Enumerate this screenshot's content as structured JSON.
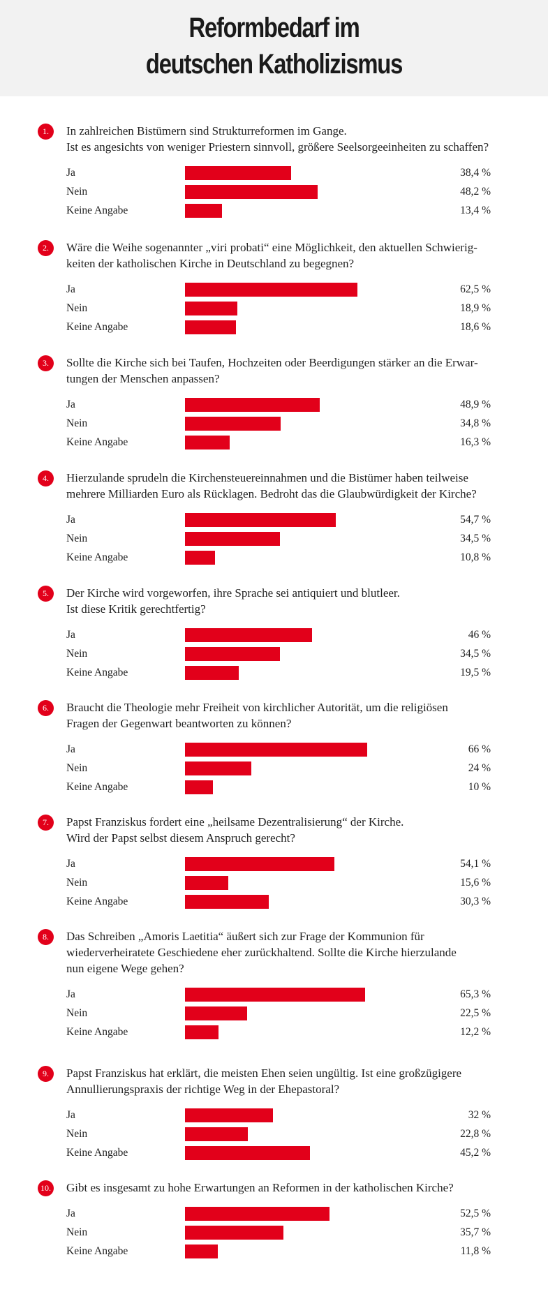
{
  "title_line1": "Reformbedarf im",
  "title_line2": "deutschen Katholizismus",
  "colors": {
    "bar": "#e2001a",
    "header_bg": "#f2f2f2"
  },
  "chart_data": {
    "type": "bar",
    "orientation": "horizontal",
    "unit": "%",
    "xlim": [
      0,
      100
    ],
    "categories": [
      "Ja",
      "Nein",
      "Keine Angabe"
    ],
    "questions": [
      {
        "number": "1.",
        "lines": [
          "In zahlreichen Bistümern sind Strukturreformen im Gange.",
          "Ist es angesichts von weniger Priestern sinnvoll, größere Seelsorgeeinheiten zu schaffen?"
        ],
        "values": [
          38.4,
          48.2,
          13.4
        ],
        "labels": [
          "38,4 %",
          "48,2 %",
          "13,4 %"
        ]
      },
      {
        "number": "2.",
        "lines": [
          "Wäre die Weihe sogenannter „viri probati“ eine Möglichkeit, den aktuellen Schwierig-",
          "keiten der katholischen Kirche in Deutschland zu begegnen?"
        ],
        "values": [
          62.5,
          18.9,
          18.6
        ],
        "labels": [
          "62,5 %",
          "18,9 %",
          "18,6 %"
        ]
      },
      {
        "number": "3.",
        "lines": [
          "Sollte die Kirche sich bei Taufen, Hochzeiten oder Beerdigungen stärker an die Erwar-",
          "tungen der Menschen anpassen?"
        ],
        "values": [
          48.9,
          34.8,
          16.3
        ],
        "labels": [
          "48,9 %",
          "34,8 %",
          "16,3 %"
        ]
      },
      {
        "number": "4.",
        "lines": [
          "Hierzulande sprudeln die Kirchensteuereinnahmen und die Bistümer haben teilweise",
          "mehrere Milliarden Euro als Rücklagen. Bedroht das die Glaubwürdigkeit der Kirche?"
        ],
        "values": [
          54.7,
          34.5,
          10.8
        ],
        "labels": [
          "54,7 %",
          "34,5 %",
          "10,8 %"
        ]
      },
      {
        "number": "5.",
        "lines": [
          "Der Kirche wird vorgeworfen, ihre Sprache sei antiquiert und blutleer.",
          "Ist diese Kritik gerechtfertig?"
        ],
        "values": [
          46,
          34.5,
          19.5
        ],
        "labels": [
          "46 %",
          "34,5 %",
          "19,5 %"
        ]
      },
      {
        "number": "6.",
        "lines": [
          "Braucht die Theologie mehr Freiheit von kirchlicher Autorität, um die religiösen",
          "Fragen der Gegenwart beantworten zu können?"
        ],
        "values": [
          66,
          24,
          10
        ],
        "labels": [
          "66 %",
          "24 %",
          "10 %"
        ]
      },
      {
        "number": "7.",
        "lines": [
          "Papst Franziskus fordert eine „heilsame Dezentralisierung“ der Kirche.",
          "Wird der Papst selbst diesem Anspruch gerecht?"
        ],
        "values": [
          54.1,
          15.6,
          30.3
        ],
        "labels": [
          "54,1 %",
          "15,6 %",
          "30,3 %"
        ]
      },
      {
        "number": "8.",
        "lines": [
          "Das Schreiben „Amoris Laetitia“ äußert sich zur Frage der Kommunion für",
          "wiederverheiratete Geschiedene eher zurückhaltend. Sollte die Kirche hierzulande",
          "nun eigene Wege gehen?"
        ],
        "values": [
          65.3,
          22.5,
          12.2
        ],
        "labels": [
          "65,3 %",
          "22,5 %",
          "12,2 %"
        ]
      },
      {
        "number": "9.",
        "lines": [
          "Papst Franziskus hat erklärt, die meisten Ehen seien ungültig. Ist eine großzügigere",
          "Annullierungspraxis der richtige Weg in der Ehepastoral?"
        ],
        "values": [
          32,
          22.8,
          45.2
        ],
        "labels": [
          "32 %",
          "22,8 %",
          "45,2 %"
        ]
      },
      {
        "number": "10.",
        "lines": [
          "Gibt es insgesamt zu hohe Erwartungen an Reformen in der katholischen Kirche?"
        ],
        "values": [
          52.5,
          35.7,
          11.8
        ],
        "labels": [
          "52,5 %",
          "35,7 %",
          "11,8 %"
        ]
      }
    ]
  }
}
